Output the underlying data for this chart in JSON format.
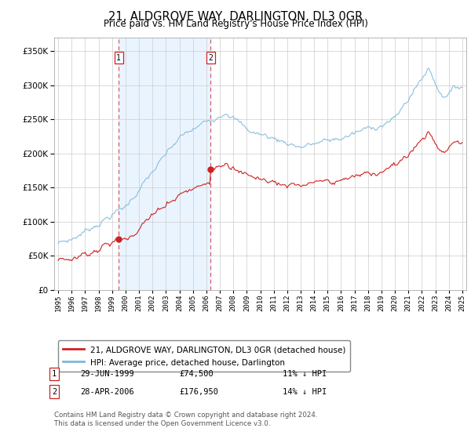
{
  "title": "21, ALDGROVE WAY, DARLINGTON, DL3 0GR",
  "subtitle": "Price paid vs. HM Land Registry's House Price Index (HPI)",
  "legend_line1": "21, ALDGROVE WAY, DARLINGTON, DL3 0GR (detached house)",
  "legend_line2": "HPI: Average price, detached house, Darlington",
  "sale1_date": "29-JUN-1999",
  "sale1_price": "£74,500",
  "sale1_hpi": "11% ↓ HPI",
  "sale2_date": "28-APR-2006",
  "sale2_price": "£176,950",
  "sale2_hpi": "14% ↓ HPI",
  "footnote": "Contains HM Land Registry data © Crown copyright and database right 2024.\nThis data is licensed under the Open Government Licence v3.0.",
  "hpi_color": "#7fb8d8",
  "price_color": "#cc2222",
  "background_shaded_color": "#ddeeff",
  "grid_color": "#cccccc",
  "ylim": [
    0,
    370000
  ],
  "yticks": [
    0,
    50000,
    100000,
    150000,
    200000,
    250000,
    300000,
    350000
  ],
  "year_start": 1995,
  "year_end": 2025,
  "sale1_year": 1999.49,
  "sale2_year": 2006.32,
  "sale1_price_val": 74500,
  "sale2_price_val": 176950
}
